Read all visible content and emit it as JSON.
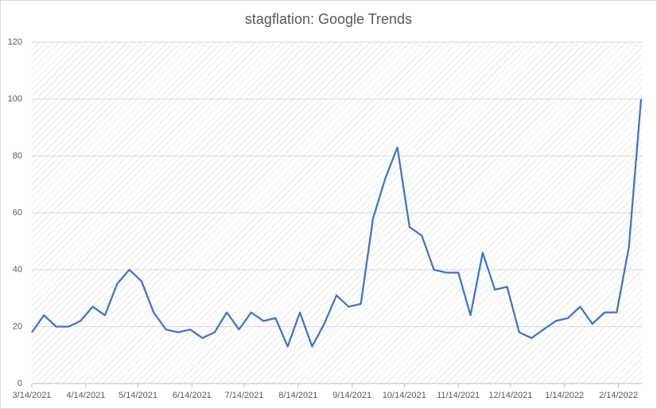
{
  "chart_data": {
    "type": "line",
    "title": "stagflation: Google Trends",
    "x": [
      "3/14/2021",
      "3/21/2021",
      "3/28/2021",
      "4/4/2021",
      "4/11/2021",
      "4/18/2021",
      "4/25/2021",
      "5/2/2021",
      "5/9/2021",
      "5/16/2021",
      "5/23/2021",
      "5/30/2021",
      "6/6/2021",
      "6/13/2021",
      "6/20/2021",
      "6/27/2021",
      "7/4/2021",
      "7/11/2021",
      "7/18/2021",
      "7/25/2021",
      "8/1/2021",
      "8/8/2021",
      "8/15/2021",
      "8/22/2021",
      "8/29/2021",
      "9/5/2021",
      "9/12/2021",
      "9/19/2021",
      "9/26/2021",
      "10/3/2021",
      "10/10/2021",
      "10/17/2021",
      "10/24/2021",
      "10/31/2021",
      "11/7/2021",
      "11/14/2021",
      "11/21/2021",
      "11/28/2021",
      "12/5/2021",
      "12/12/2021",
      "12/19/2021",
      "12/26/2021",
      "1/2/2022",
      "1/9/2022",
      "1/16/2022",
      "1/23/2022",
      "1/30/2022",
      "2/6/2022",
      "2/13/2022",
      "2/20/2022",
      "2/27/2022"
    ],
    "values": [
      18,
      24,
      20,
      20,
      22,
      27,
      24,
      35,
      40,
      36,
      25,
      19,
      18,
      19,
      16,
      18,
      25,
      19,
      25,
      22,
      23,
      13,
      25,
      13,
      21,
      31,
      27,
      28,
      58,
      72,
      83,
      55,
      52,
      40,
      39,
      39,
      24,
      46,
      33,
      34,
      18,
      16,
      19,
      22,
      23,
      27,
      21,
      25,
      25,
      48,
      100
    ],
    "color": "#4472c4",
    "xlim": [
      "3/14/2021",
      "2/27/2022"
    ],
    "xticks": [
      "3/14/2021",
      "4/14/2021",
      "5/14/2021",
      "6/14/2021",
      "7/14/2021",
      "8/14/2021",
      "9/14/2021",
      "10/14/2021",
      "11/14/2021",
      "12/14/2021",
      "1/14/2022",
      "2/14/2022"
    ],
    "ylim": [
      0,
      120
    ],
    "yticks": [
      0,
      20,
      40,
      60,
      80,
      100,
      120
    ],
    "grid": true
  }
}
